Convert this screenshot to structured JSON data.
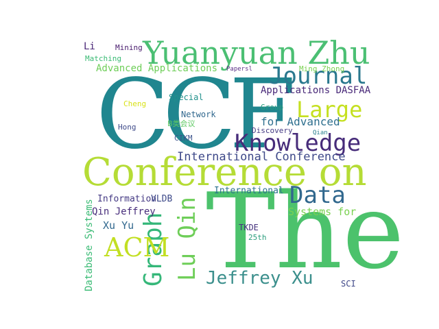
{
  "words": [
    {
      "key": "the",
      "text": "The",
      "color": "#4cc26c"
    },
    {
      "key": "ccf",
      "text": "CCF",
      "color": "#20868f"
    },
    {
      "key": "conference_on",
      "text": "Conference on",
      "color": "#b5dc36"
    },
    {
      "key": "yuanyuan_zhu",
      "text": "Yuanyuan Zhu",
      "color": "#4bbf73"
    },
    {
      "key": "knowledge",
      "text": "Knowledge",
      "color": "#472c7a"
    },
    {
      "key": "journal",
      "text": "Journal",
      "color": "#2a788e"
    },
    {
      "key": "large",
      "text": "Large",
      "color": "#c5e021"
    },
    {
      "key": "data",
      "text": "Data",
      "color": "#31688e"
    },
    {
      "key": "graph",
      "text": "Graph",
      "color": "#35b779"
    },
    {
      "key": "lu_qin",
      "text": "Lu Qin",
      "color": "#6ece58"
    },
    {
      "key": "jeffrey_xu",
      "text": "Jeffrey Xu",
      "color": "#3b8f8c"
    },
    {
      "key": "acm",
      "text": "ACM",
      "color": "#c2df23"
    },
    {
      "key": "international_conference",
      "text": "International Conference",
      "color": "#3e4989"
    },
    {
      "key": "applications_dasfaa",
      "text": "Applications DASFAA",
      "color": "#482878"
    },
    {
      "key": "for_advanced",
      "text": "for Advanced",
      "color": "#2e6f8e"
    },
    {
      "key": "advanced_applications",
      "text": "Advanced Applications",
      "color": "#6ece58"
    },
    {
      "key": "systems_for",
      "text": "Systems for",
      "color": "#7ad151"
    },
    {
      "key": "database_systems",
      "text": "Database Systems",
      "color": "#3bbb75"
    },
    {
      "key": "qin_jeffrey",
      "text": "Qin Jeffrey",
      "color": "#472d7b"
    },
    {
      "key": "xu_yu",
      "text": "Xu Yu",
      "color": "#31688e"
    },
    {
      "key": "information",
      "text": "Information",
      "color": "#443983"
    },
    {
      "key": "vldb",
      "text": "VLDB",
      "color": "#3e4a89"
    },
    {
      "key": "international",
      "text": "International",
      "color": "#2c728e"
    },
    {
      "key": "li",
      "text": "Li",
      "color": "#482576"
    },
    {
      "key": "mining",
      "text": "Mining",
      "color": "#481a6c"
    },
    {
      "key": "matching",
      "text": "Matching",
      "color": "#3bbb75"
    },
    {
      "key": "papers",
      "text": "Papersl",
      "color": "#5c2f86"
    },
    {
      "key": "ming_zhong",
      "text": "Ming Zhong",
      "color": "#7ad151"
    },
    {
      "key": "special",
      "text": "Special",
      "color": "#21918c"
    },
    {
      "key": "group",
      "text": "Group",
      "color": "#2a9d7c"
    },
    {
      "key": "cheng",
      "text": "Cheng",
      "color": "#d8e219"
    },
    {
      "key": "network",
      "text": "Network",
      "color": "#31688e"
    },
    {
      "key": "b_conference",
      "text": "B类会议",
      "color": "#5ec962"
    },
    {
      "key": "hong",
      "text": "Hong",
      "color": "#3e4a89"
    },
    {
      "key": "discovery",
      "text": "Discovery",
      "color": "#443a83"
    },
    {
      "key": "qian",
      "text": "Qian",
      "color": "#287d8e"
    },
    {
      "key": "cikm",
      "text": "CIKM",
      "color": "#3b528b"
    },
    {
      "key": "tkde",
      "text": "TKDE",
      "color": "#46327e"
    },
    {
      "key": "25th",
      "text": "25th",
      "color": "#2a9d7c"
    },
    {
      "key": "sci",
      "text": "SCI",
      "color": "#3f4788"
    }
  ]
}
